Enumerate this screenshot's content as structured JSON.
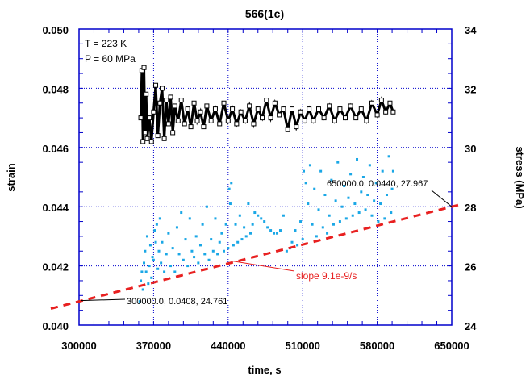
{
  "chart_data": {
    "type": "scatter",
    "title": "566(1c)",
    "xlabel": "time, s",
    "ylabel": "strain",
    "y2label": "stress (MPa)",
    "xlim": [
      300000,
      650000
    ],
    "ylim": [
      0.04,
      0.05
    ],
    "y2lim": [
      24,
      34
    ],
    "xticks": [
      "300000",
      "370000",
      "440000",
      "510000",
      "580000",
      "650000"
    ],
    "yticks": [
      "0.040",
      "0.042",
      "0.044",
      "0.046",
      "0.048",
      "0.050"
    ],
    "y2ticks": [
      "24",
      "26",
      "28",
      "30",
      "32",
      "34"
    ],
    "grid": true,
    "legend_text": [
      "T = 223 K",
      "P = 60 MPa"
    ],
    "colors": {
      "strain": "#1aa7e6",
      "stress": "#000000",
      "fit": "#e82020",
      "axis": "#0000cc"
    },
    "series": [
      {
        "name": "stress",
        "axis": "right",
        "marker": "open-square",
        "points": [
          [
            358000,
            31.0
          ],
          [
            359000,
            32.6
          ],
          [
            360000,
            30.2
          ],
          [
            361000,
            32.7
          ],
          [
            362000,
            30.5
          ],
          [
            363000,
            31.8
          ],
          [
            364000,
            30.3
          ],
          [
            366000,
            31.0
          ],
          [
            368000,
            30.2
          ],
          [
            370000,
            31.2
          ],
          [
            372000,
            32.1
          ],
          [
            374000,
            30.4
          ],
          [
            376000,
            31.5
          ],
          [
            378000,
            32.0
          ],
          [
            380000,
            30.3
          ],
          [
            382000,
            31.6
          ],
          [
            384000,
            30.8
          ],
          [
            386000,
            31.7
          ],
          [
            388000,
            30.5
          ],
          [
            390000,
            31.4
          ],
          [
            393000,
            30.9
          ],
          [
            396000,
            31.6
          ],
          [
            399000,
            30.8
          ],
          [
            402000,
            31.3
          ],
          [
            405000,
            30.7
          ],
          [
            408000,
            31.5
          ],
          [
            411000,
            30.9
          ],
          [
            414000,
            31.2
          ],
          [
            417000,
            30.7
          ],
          [
            420000,
            31.4
          ],
          [
            424000,
            30.9
          ],
          [
            428000,
            31.3
          ],
          [
            432000,
            30.8
          ],
          [
            436000,
            31.5
          ],
          [
            440000,
            30.9
          ],
          [
            444000,
            31.3
          ],
          [
            448000,
            30.8
          ],
          [
            452000,
            31.2
          ],
          [
            456000,
            30.9
          ],
          [
            460000,
            31.4
          ],
          [
            464000,
            30.8
          ],
          [
            468000,
            31.3
          ],
          [
            472000,
            31.0
          ],
          [
            476000,
            31.6
          ],
          [
            480000,
            31.0
          ],
          [
            484000,
            31.5
          ],
          [
            488000,
            31.1
          ],
          [
            492000,
            31.3
          ],
          [
            496000,
            30.6
          ],
          [
            500000,
            31.3
          ],
          [
            504000,
            30.7
          ],
          [
            508000,
            31.2
          ],
          [
            512000,
            30.9
          ],
          [
            516000,
            31.3
          ],
          [
            520000,
            30.9
          ],
          [
            525000,
            31.3
          ],
          [
            530000,
            31.0
          ],
          [
            535000,
            31.4
          ],
          [
            540000,
            30.9
          ],
          [
            545000,
            31.3
          ],
          [
            550000,
            31.0
          ],
          [
            555000,
            31.4
          ],
          [
            560000,
            31.0
          ],
          [
            565000,
            31.3
          ],
          [
            570000,
            30.9
          ],
          [
            575000,
            31.5
          ],
          [
            580000,
            31.1
          ],
          [
            584000,
            31.6
          ],
          [
            588000,
            31.2
          ],
          [
            592000,
            31.5
          ],
          [
            595000,
            31.2
          ]
        ]
      },
      {
        "name": "strain",
        "axis": "left",
        "marker": "dot",
        "points": [
          [
            357000,
            0.0408
          ],
          [
            358000,
            0.0415
          ],
          [
            359000,
            0.0418
          ],
          [
            360000,
            0.0412
          ],
          [
            361000,
            0.0421
          ],
          [
            362000,
            0.0425
          ],
          [
            363000,
            0.0418
          ],
          [
            364000,
            0.043
          ],
          [
            365000,
            0.0414
          ],
          [
            366000,
            0.042
          ],
          [
            367000,
            0.0427
          ],
          [
            368000,
            0.0416
          ],
          [
            369000,
            0.0423
          ],
          [
            370000,
            0.0422
          ],
          [
            371000,
            0.0432
          ],
          [
            372000,
            0.0428
          ],
          [
            373000,
            0.0434
          ],
          [
            374000,
            0.0419
          ],
          [
            375000,
            0.0425
          ],
          [
            376000,
            0.0436
          ],
          [
            377000,
            0.0421
          ],
          [
            378000,
            0.0428
          ],
          [
            380000,
            0.0418
          ],
          [
            382000,
            0.0424
          ],
          [
            384000,
            0.0431
          ],
          [
            386000,
            0.042
          ],
          [
            388000,
            0.0426
          ],
          [
            390000,
            0.0418
          ],
          [
            392000,
            0.0433
          ],
          [
            394000,
            0.0424
          ],
          [
            396000,
            0.0438
          ],
          [
            398000,
            0.0422
          ],
          [
            400000,
            0.0429
          ],
          [
            402000,
            0.042
          ],
          [
            404000,
            0.0436
          ],
          [
            406000,
            0.0425
          ],
          [
            408000,
            0.0423
          ],
          [
            410000,
            0.043
          ],
          [
            412000,
            0.0421
          ],
          [
            414000,
            0.0427
          ],
          [
            416000,
            0.0434
          ],
          [
            418000,
            0.0424
          ],
          [
            420000,
            0.044
          ],
          [
            422000,
            0.0422
          ],
          [
            424000,
            0.0429
          ],
          [
            426000,
            0.0425
          ],
          [
            428000,
            0.0436
          ],
          [
            430000,
            0.0424
          ],
          [
            432000,
            0.0428
          ],
          [
            434000,
            0.0431
          ],
          [
            436000,
            0.0425
          ],
          [
            438000,
            0.0434
          ],
          [
            440000,
            0.0426
          ],
          [
            441000,
            0.0446
          ],
          [
            442000,
            0.0441
          ],
          [
            443000,
            0.0448
          ],
          [
            445000,
            0.0427
          ],
          [
            447000,
            0.0434
          ],
          [
            449000,
            0.0428
          ],
          [
            451000,
            0.0437
          ],
          [
            453000,
            0.0429
          ],
          [
            455000,
            0.0433
          ],
          [
            457000,
            0.043
          ],
          [
            459000,
            0.0441
          ],
          [
            461000,
            0.0431
          ],
          [
            463000,
            0.0434
          ],
          [
            465000,
            0.0438
          ],
          [
            468000,
            0.0437
          ],
          [
            471000,
            0.0436
          ],
          [
            474000,
            0.0435
          ],
          [
            477000,
            0.0433
          ],
          [
            480000,
            0.0432
          ],
          [
            483000,
            0.0431
          ],
          [
            486000,
            0.0431
          ],
          [
            489000,
            0.0432
          ],
          [
            492000,
            0.0437
          ],
          [
            495000,
            0.0425
          ],
          [
            498000,
            0.0426
          ],
          [
            500000,
            0.0428
          ],
          [
            503000,
            0.0432
          ],
          [
            505000,
            0.0427
          ],
          [
            508000,
            0.0435
          ],
          [
            510000,
            0.0429
          ],
          [
            511000,
            0.0452
          ],
          [
            513000,
            0.0448
          ],
          [
            515000,
            0.0441
          ],
          [
            517000,
            0.0454
          ],
          [
            519000,
            0.0434
          ],
          [
            521000,
            0.0446
          ],
          [
            523000,
            0.043
          ],
          [
            525000,
            0.0439
          ],
          [
            527000,
            0.0452
          ],
          [
            529000,
            0.0433
          ],
          [
            531000,
            0.0444
          ],
          [
            533000,
            0.0431
          ],
          [
            535000,
            0.0437
          ],
          [
            537000,
            0.0449
          ],
          [
            539000,
            0.0434
          ],
          [
            541000,
            0.0442
          ],
          [
            543000,
            0.0455
          ],
          [
            545000,
            0.0435
          ],
          [
            547000,
            0.044
          ],
          [
            549000,
            0.0447
          ],
          [
            551000,
            0.0436
          ],
          [
            553000,
            0.0443
          ],
          [
            555000,
            0.0451
          ],
          [
            557000,
            0.0437
          ],
          [
            559000,
            0.0441
          ],
          [
            561000,
            0.0456
          ],
          [
            563000,
            0.0438
          ],
          [
            565000,
            0.0445
          ],
          [
            567000,
            0.045
          ],
          [
            569000,
            0.0439
          ],
          [
            571000,
            0.0444
          ],
          [
            573000,
            0.0454
          ],
          [
            575000,
            0.0437
          ],
          [
            577000,
            0.0442
          ],
          [
            579000,
            0.0448
          ],
          [
            581000,
            0.0435
          ],
          [
            583000,
            0.0441
          ],
          [
            585000,
            0.0452
          ],
          [
            587000,
            0.0436
          ],
          [
            589000,
            0.0444
          ],
          [
            591000,
            0.0457
          ],
          [
            593000,
            0.0438
          ],
          [
            594000,
            0.0446
          ],
          [
            595000,
            0.0452
          ]
        ]
      },
      {
        "name": "fit",
        "axis": "left",
        "style": "dashed",
        "points": [
          [
            300000,
            0.0408
          ],
          [
            650000,
            0.044
          ]
        ]
      }
    ],
    "annotations": [
      {
        "text": "300000.0, 0.0408, 24.761",
        "x": 300000,
        "y": 0.0408
      },
      {
        "text": "650000.0, 0.0440, 27.967",
        "x": 650000,
        "y": 0.044
      },
      {
        "text": "slope 9.1e-9/s",
        "x": 455000,
        "y": 0.04222
      }
    ]
  }
}
